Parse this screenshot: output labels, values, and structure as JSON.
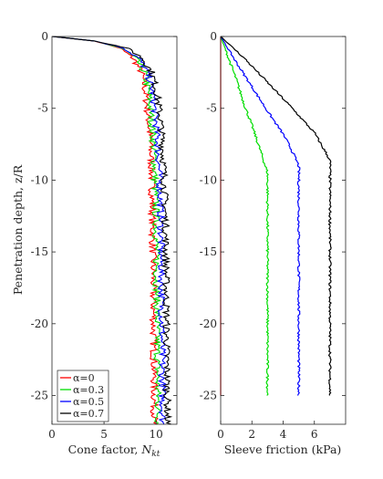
{
  "chart_data": [
    {
      "type": "line",
      "xlabel": "Cone factor, N_kt",
      "xlabel_main": "Cone factor, ",
      "xlabel_sym": "N",
      "xlabel_sub": "kt",
      "ylabel": "Penetration depth, z/R",
      "xlim": [
        0,
        12
      ],
      "ylim": [
        -27,
        0
      ],
      "xticks": [
        0,
        5,
        10
      ],
      "yticks": [
        0,
        -5,
        -10,
        -15,
        -20,
        -25
      ],
      "grid": false,
      "legend_position": "bottom-left",
      "series": [
        {
          "name": "α=0",
          "alpha": "0",
          "color": "#ff0000",
          "x": [
            0,
            4.0,
            6.5,
            7.8,
            8.6,
            9.0,
            9.3,
            9.5,
            9.6,
            9.65,
            9.7,
            9.75,
            9.8,
            9.85
          ],
          "y": [
            0,
            -0.3,
            -0.8,
            -1.5,
            -2.5,
            -4,
            -6,
            -8,
            -10,
            -13,
            -16,
            -20,
            -24,
            -27
          ]
        },
        {
          "name": "α=0.3",
          "alpha": "0.3",
          "color": "#00dd00",
          "x": [
            0,
            4.0,
            6.7,
            8.0,
            8.9,
            9.3,
            9.6,
            9.8,
            9.9,
            10.0,
            10.05,
            10.1,
            10.15,
            10.2
          ],
          "y": [
            0,
            -0.3,
            -0.8,
            -1.5,
            -2.5,
            -4,
            -6,
            -8,
            -10,
            -13,
            -16,
            -20,
            -24,
            -27
          ]
        },
        {
          "name": "α=0.5",
          "alpha": "0.5",
          "color": "#0000ff",
          "x": [
            0,
            4.0,
            6.9,
            8.3,
            9.2,
            9.7,
            10.0,
            10.2,
            10.35,
            10.45,
            10.5,
            10.55,
            10.6,
            10.65
          ],
          "y": [
            0,
            -0.3,
            -0.8,
            -1.5,
            -2.5,
            -4,
            -6,
            -8,
            -10,
            -13,
            -16,
            -20,
            -24,
            -27
          ]
        },
        {
          "name": "α=0.7",
          "alpha": "0.7",
          "color": "#000000",
          "x": [
            0,
            4.0,
            7.2,
            8.7,
            9.6,
            10.1,
            10.45,
            10.65,
            10.8,
            10.9,
            10.95,
            11.0,
            11.05,
            11.1
          ],
          "y": [
            0,
            -0.3,
            -0.8,
            -1.5,
            -2.5,
            -4,
            -6,
            -8,
            -10,
            -13,
            -16,
            -20,
            -24,
            -27
          ]
        }
      ]
    },
    {
      "type": "line",
      "xlabel": "Sleeve friction (kPa)",
      "xlim": [
        0,
        8
      ],
      "ylim": [
        -27,
        0
      ],
      "xticks": [
        0,
        2,
        4,
        6
      ],
      "yticks": [
        0,
        -5,
        -10,
        -15,
        -20,
        -25
      ],
      "grid": false,
      "series": [
        {
          "name": "α=0",
          "color": "#ff0000",
          "x": [
            0,
            0,
            0
          ],
          "y": [
            0,
            -10,
            -25
          ]
        },
        {
          "name": "α=0.3",
          "color": "#00dd00",
          "x": [
            0,
            0.5,
            1.0,
            1.5,
            2.0,
            2.5,
            3.0,
            3.0,
            3.0
          ],
          "y": [
            0,
            -1.5,
            -3.0,
            -4.7,
            -6.2,
            -7.8,
            -9.5,
            -20,
            -25
          ]
        },
        {
          "name": "α=0.5",
          "color": "#0000ff",
          "x": [
            0,
            1.0,
            2.0,
            3.0,
            4.0,
            4.5,
            5.0,
            5.0,
            5.0
          ],
          "y": [
            0,
            -1.8,
            -3.5,
            -5.2,
            -6.8,
            -7.8,
            -9.0,
            -20,
            -25
          ]
        },
        {
          "name": "α=0.7",
          "color": "#000000",
          "x": [
            0,
            1.5,
            3.0,
            4.5,
            6.0,
            7.0,
            7.0,
            7.0
          ],
          "y": [
            0,
            -1.5,
            -3.2,
            -4.9,
            -6.7,
            -8.6,
            -20,
            -25
          ]
        }
      ]
    }
  ]
}
